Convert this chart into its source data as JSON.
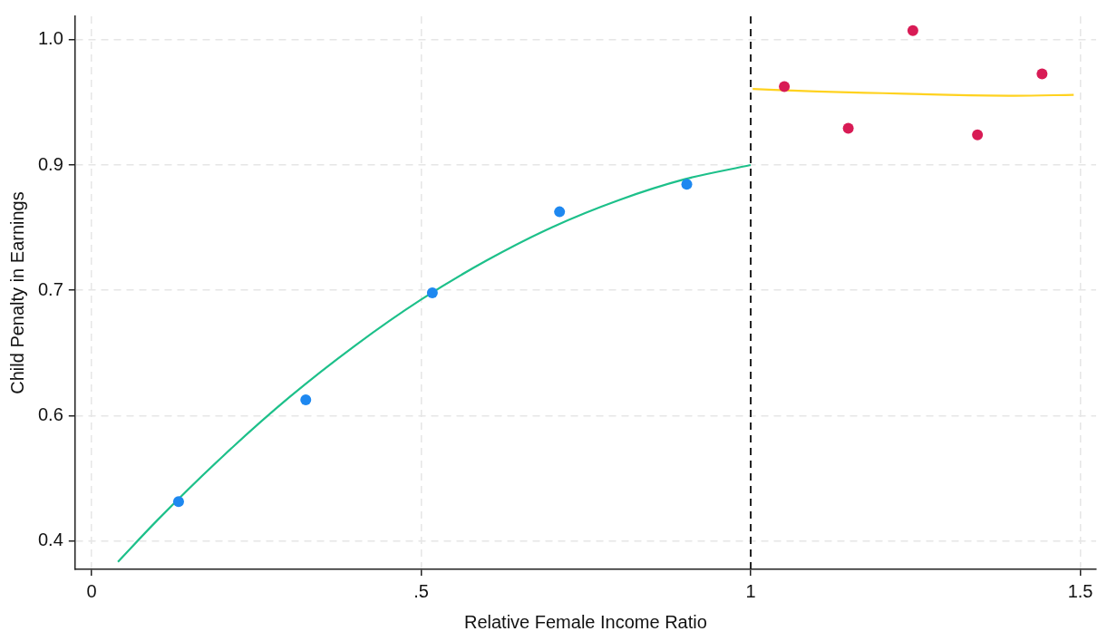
{
  "chart_data": {
    "type": "scatter",
    "xlabel": "Relative Female Income Ratio",
    "ylabel": "Child Penalty in Earnings",
    "xlim": [
      -0.025,
      1.524
    ],
    "ylim": [
      0.366,
      1.028
    ],
    "xticks": [
      0,
      {
        "value": 0.5,
        "label": ".5"
      },
      1,
      1.5
    ],
    "yticks": [
      {
        "value": 0.4,
        "label": "0.4"
      },
      {
        "value": 0.55,
        "label": "0.6"
      },
      {
        "value": 0.7,
        "label": "0.7"
      },
      {
        "value": 0.85,
        "label": "0.9"
      },
      {
        "value": 1.0,
        "label": "1.0"
      }
    ],
    "grid": true,
    "marker": "circle",
    "ref_lines": [
      {
        "axis": "x",
        "value": 1,
        "color": "#222222",
        "line_style": "dashed"
      }
    ],
    "series": [
      {
        "color": "#1e88f0",
        "x": [
          0.132,
          0.325,
          0.517,
          0.71,
          0.903
        ],
        "values": [
          0.447,
          0.569,
          0.697,
          0.794,
          0.827
        ]
      },
      {
        "color": "#d81b55",
        "x": [
          1.051,
          1.148,
          1.246,
          1.344,
          1.442
        ],
        "values": [
          0.944,
          0.894,
          1.011,
          0.886,
          0.959
        ]
      },
      {
        "type": "line",
        "marker": "none",
        "color": "#1dc08a",
        "x": [
          0.04,
          0.1,
          0.2,
          0.3,
          0.4,
          0.5,
          0.6,
          0.7,
          0.8,
          0.9,
          1.0
        ],
        "values": [
          0.375,
          0.425,
          0.502,
          0.572,
          0.634,
          0.689,
          0.736,
          0.776,
          0.808,
          0.833,
          0.85
        ]
      },
      {
        "type": "line",
        "marker": "none",
        "color": "#ffd21f",
        "x": [
          1.003,
          1.1,
          1.2,
          1.3,
          1.4,
          1.49
        ],
        "values": [
          0.941,
          0.938,
          0.936,
          0.934,
          0.933,
          0.934
        ]
      }
    ]
  }
}
